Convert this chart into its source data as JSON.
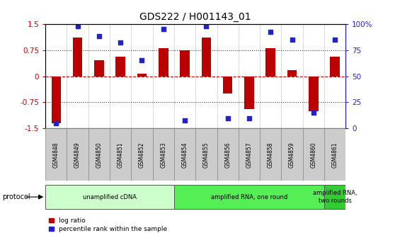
{
  "title": "GDS222 / H001143_01",
  "samples": [
    "GSM4848",
    "GSM4849",
    "GSM4850",
    "GSM4851",
    "GSM4852",
    "GSM4853",
    "GSM4854",
    "GSM4855",
    "GSM4856",
    "GSM4857",
    "GSM4858",
    "GSM4859",
    "GSM4860",
    "GSM4861"
  ],
  "log_ratio": [
    -1.35,
    1.1,
    0.45,
    0.55,
    0.08,
    0.8,
    0.75,
    1.1,
    -0.5,
    -0.95,
    0.8,
    0.18,
    -1.0,
    0.55
  ],
  "percentile": [
    5,
    98,
    88,
    82,
    65,
    95,
    8,
    98,
    10,
    10,
    92,
    85,
    15,
    85
  ],
  "ylim": [
    -1.5,
    1.5
  ],
  "yticks_left": [
    -1.5,
    -0.75,
    0,
    0.75,
    1.5
  ],
  "yticks_right_labels": [
    "0",
    "25",
    "50",
    "75",
    "100%"
  ],
  "bar_color": "#bb0000",
  "dot_color": "#2222cc",
  "bg_color": "#ffffff",
  "protocol_groups": [
    {
      "label": "unamplified cDNA",
      "start": 0,
      "end": 5,
      "color": "#ccffcc"
    },
    {
      "label": "amplified RNA, one round",
      "start": 6,
      "end": 12,
      "color": "#55ee55"
    },
    {
      "label": "amplified RNA,\ntwo rounds",
      "start": 13,
      "end": 13,
      "color": "#33cc33"
    }
  ],
  "ylabel_left_color": "#cc0000",
  "ylabel_right_color": "#2222cc",
  "title_fontsize": 10,
  "tick_fontsize": 7.5,
  "bar_width": 0.45,
  "dot_size": 22
}
